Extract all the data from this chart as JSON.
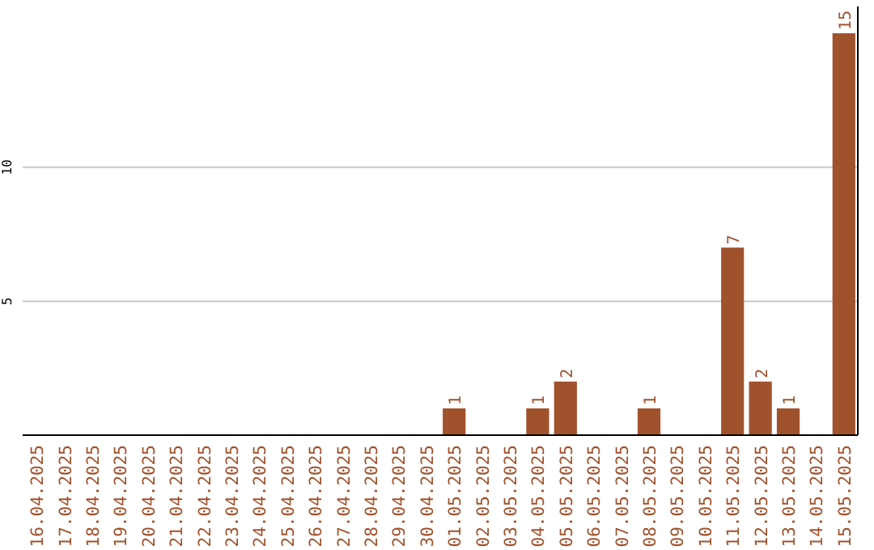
{
  "chart_data": {
    "type": "bar",
    "categories": [
      "16.04.2025",
      "17.04.2025",
      "18.04.2025",
      "19.04.2025",
      "20.04.2025",
      "21.04.2025",
      "22.04.2025",
      "23.04.2025",
      "24.04.2025",
      "25.04.2025",
      "26.04.2025",
      "27.04.2025",
      "28.04.2025",
      "29.04.2025",
      "30.04.2025",
      "01.05.2025",
      "02.05.2025",
      "03.05.2025",
      "04.05.2025",
      "05.05.2025",
      "06.05.2025",
      "07.05.2025",
      "08.05.2025",
      "09.05.2025",
      "10.05.2025",
      "11.05.2025",
      "12.05.2025",
      "13.05.2025",
      "14.05.2025",
      "15.05.2025"
    ],
    "values": [
      0,
      0,
      0,
      0,
      0,
      0,
      0,
      0,
      0,
      0,
      0,
      0,
      0,
      0,
      0,
      1,
      0,
      0,
      1,
      2,
      0,
      0,
      1,
      0,
      0,
      7,
      2,
      1,
      0,
      15
    ],
    "value_labels": [
      null,
      null,
      null,
      null,
      null,
      null,
      null,
      null,
      null,
      null,
      null,
      null,
      null,
      null,
      null,
      "1",
      null,
      null,
      "1",
      "2",
      null,
      null,
      "1",
      null,
      null,
      "7",
      "2",
      "1",
      null,
      "15"
    ],
    "color": "#a0522d",
    "ylim": [
      0,
      16
    ],
    "yticks": [
      5,
      10
    ],
    "grid": "y"
  }
}
